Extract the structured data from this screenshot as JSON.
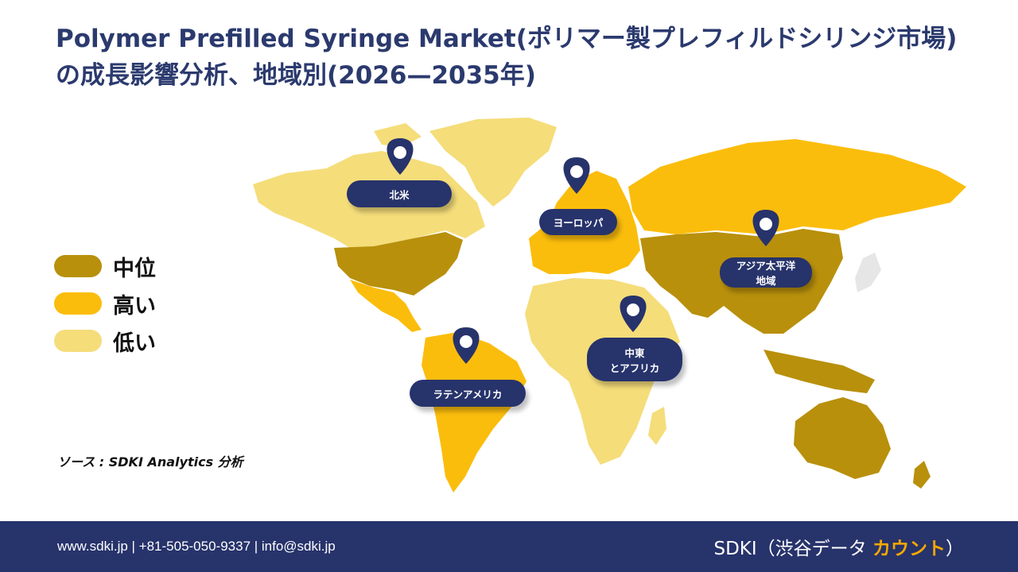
{
  "title": "Polymer Prefilled Syringe Market(ポリマー製プレフィルドシリンジ市場)の成長影響分析、地域別(2026—2035年)",
  "legend": [
    {
      "label": "中位",
      "color": "#b8900c"
    },
    {
      "label": "高い",
      "color": "#fbbd0c"
    },
    {
      "label": "低い",
      "color": "#f5dd7a"
    }
  ],
  "regions": {
    "north_america": "北米",
    "europe": "ヨーロッパ",
    "asia_pacific_line1": "アジア太平洋",
    "asia_pacific_line2": "地域",
    "middle_east_line1": "中東",
    "middle_east_line2": "とアフリカ",
    "latin_america": "ラテンアメリカ"
  },
  "region_levels": {
    "north_america": "中位",
    "europe": "高い",
    "asia_pacific": "中位",
    "middle_east_africa": "低い",
    "latin_america": "高い"
  },
  "colors": {
    "label_bg": "#27336b",
    "title": "#2b3a6e",
    "footer_bg": "#27336b",
    "brand_accent": "#f6a800",
    "unlisted_land": "#e6e6e6"
  },
  "source": "ソース : SDKI Analytics 分析",
  "footer": {
    "contact": "www.sdki.jp | +81-505-050-9337 | info@sdki.jp",
    "brand_prefix": "SDKI（渋谷データ ",
    "brand_accent": "カウント",
    "brand_suffix": "）"
  }
}
